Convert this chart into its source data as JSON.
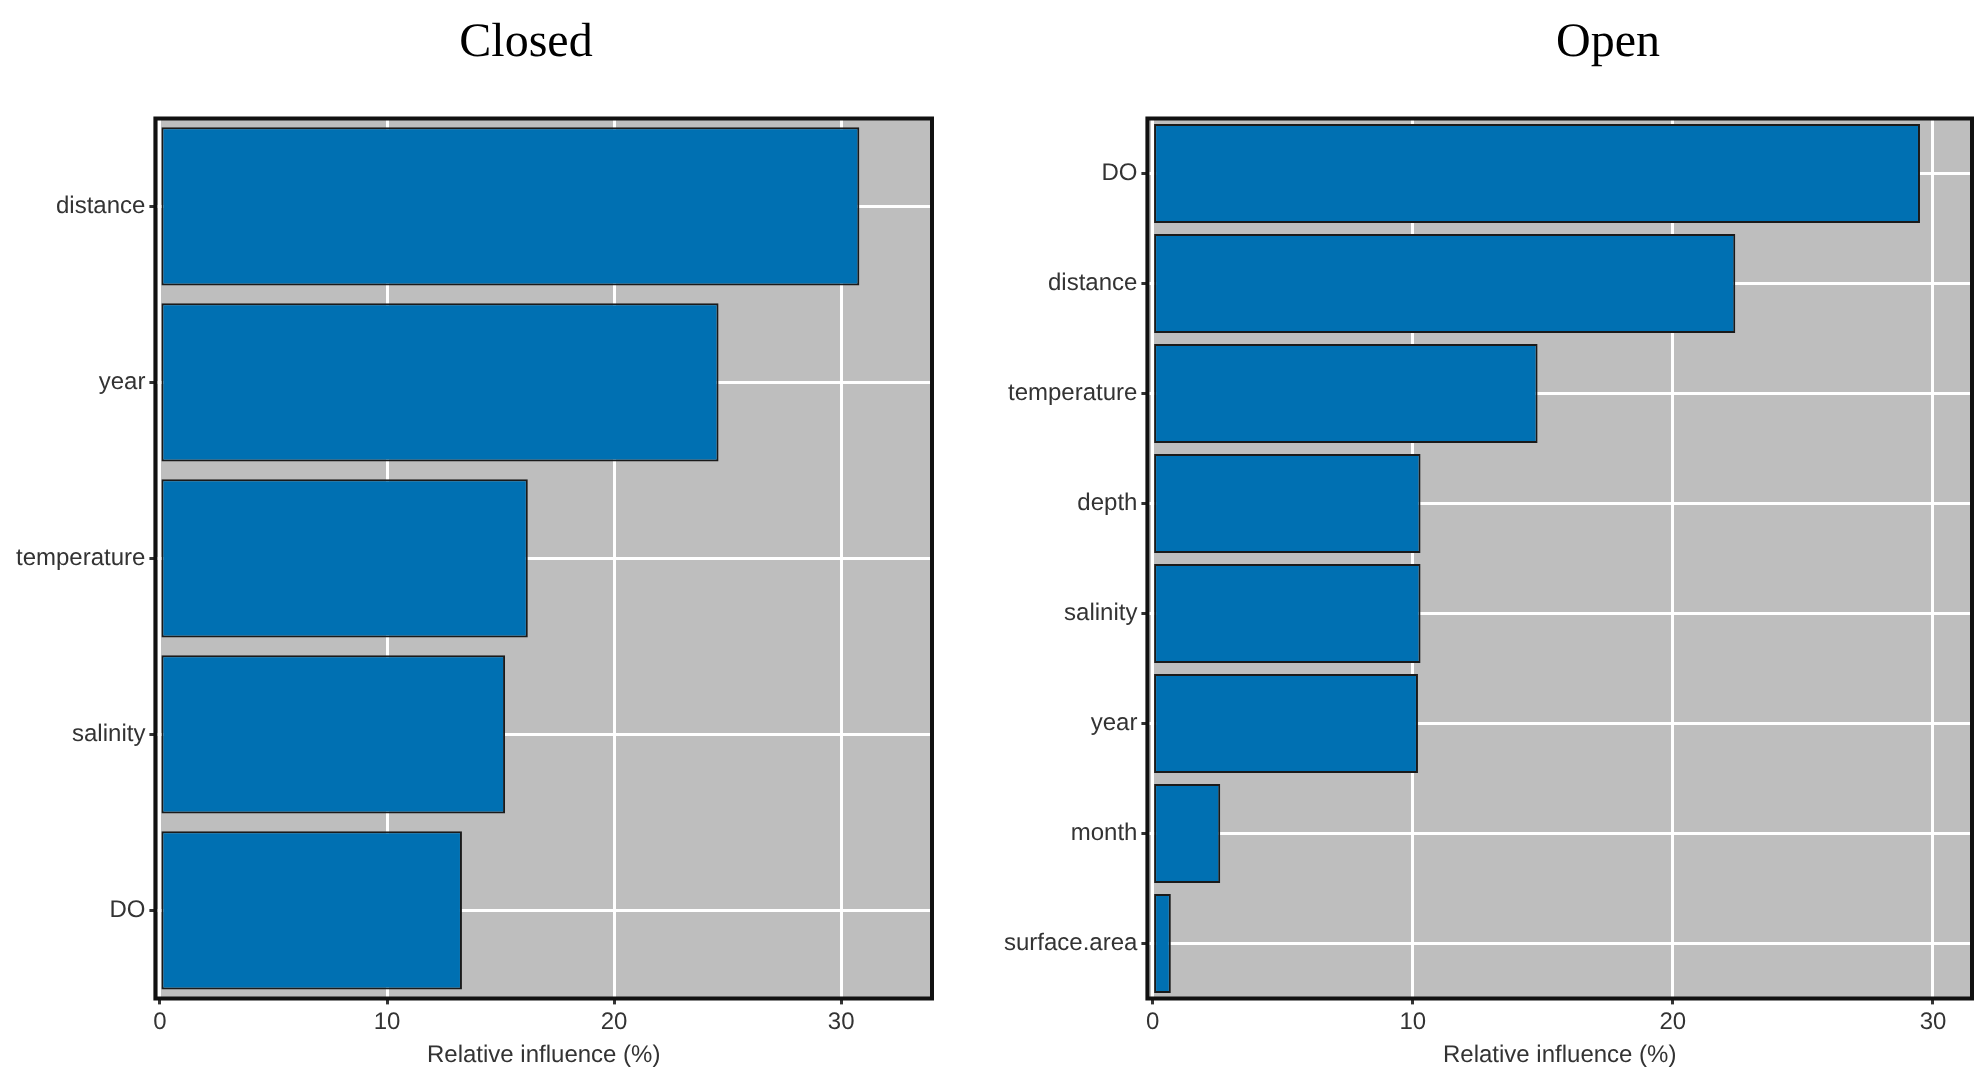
{
  "chart_data": [
    {
      "type": "bar",
      "title": "Closed",
      "orientation": "horizontal",
      "xlabel": "Relative influence (%)",
      "categories": [
        "distance",
        "year",
        "temperature",
        "salinity",
        "DO"
      ],
      "values": [
        30.8,
        24.6,
        16.2,
        15.2,
        13.3
      ],
      "color": "#0070b2",
      "xlim": [
        -0.2,
        34
      ],
      "xticks": [
        0,
        10,
        20,
        30
      ],
      "grid": true,
      "legend": false
    },
    {
      "type": "bar",
      "title": "Open",
      "orientation": "horizontal",
      "xlabel": "Relative influence (%)",
      "categories": [
        "DO",
        "distance",
        "temperature",
        "depth",
        "salinity",
        "year",
        "month",
        "surface.area"
      ],
      "values": [
        29.5,
        22.4,
        14.8,
        10.3,
        10.3,
        10.2,
        2.6,
        0.7
      ],
      "color": "#0070b2",
      "xlim": [
        -0.2,
        31.5
      ],
      "xticks": [
        0,
        10,
        20,
        30
      ],
      "grid": true,
      "legend": false
    }
  ]
}
